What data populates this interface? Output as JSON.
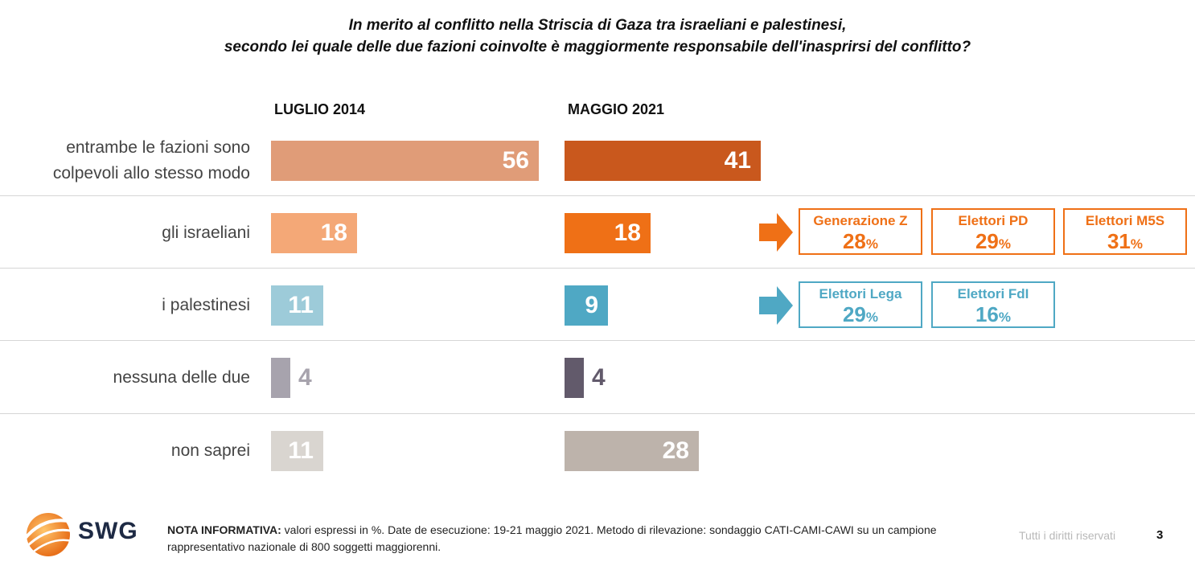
{
  "title_line1": "In merito al conflitto nella Striscia di Gaza tra israeliani e palestinesi,",
  "title_line2": "secondo lei quale delle due fazioni coinvolte è maggiormente responsabile dell'inasprirsi del conflitto?",
  "chart_data": {
    "type": "bar",
    "orientation": "horizontal",
    "categories": [
      "entrambe le fazioni sono colpevoli allo stesso modo",
      "gli israeliani",
      "i palestinesi",
      "nessuna delle due",
      "non saprei"
    ],
    "series": [
      {
        "name": "LUGLIO 2014",
        "values": [
          56,
          18,
          11,
          4,
          11
        ],
        "colors": [
          "#e09c78",
          "#f4a877",
          "#9dcbd9",
          "#a7a3ad",
          "#d9d5d0"
        ]
      },
      {
        "name": "MAGGIO 2021",
        "values": [
          41,
          18,
          9,
          4,
          28
        ],
        "colors": [
          "#c9581d",
          "#ef7016",
          "#4fa8c4",
          "#625a6b",
          "#bdb3ab"
        ]
      }
    ],
    "unit": "%"
  },
  "callouts": {
    "israeliani": {
      "color": "#ef7016",
      "items": [
        {
          "label": "Generazione Z",
          "value": "28",
          "unit": "%"
        },
        {
          "label": "Elettori PD",
          "value": "29",
          "unit": "%"
        },
        {
          "label": "Elettori M5S",
          "value": "31",
          "unit": "%"
        }
      ]
    },
    "palestinesi": {
      "color": "#4fa8c4",
      "items": [
        {
          "label": "Elettori Lega",
          "value": "29",
          "unit": "%"
        },
        {
          "label": "Elettori FdI",
          "value": "16",
          "unit": "%"
        }
      ]
    }
  },
  "logo": {
    "text": "SWG"
  },
  "footer": {
    "note_bold": "NOTA INFORMATIVA:",
    "note_text": " valori espressi in %. Date de esecuzione: 19-21 maggio 2021. Metodo di rilevazione: sondaggio CATI-CAMI-CAWI su un campione rappresentativo nazionale di 800 soggetti maggiorenni.",
    "rights": "Tutti i diritti riservati",
    "page_number": "3"
  }
}
